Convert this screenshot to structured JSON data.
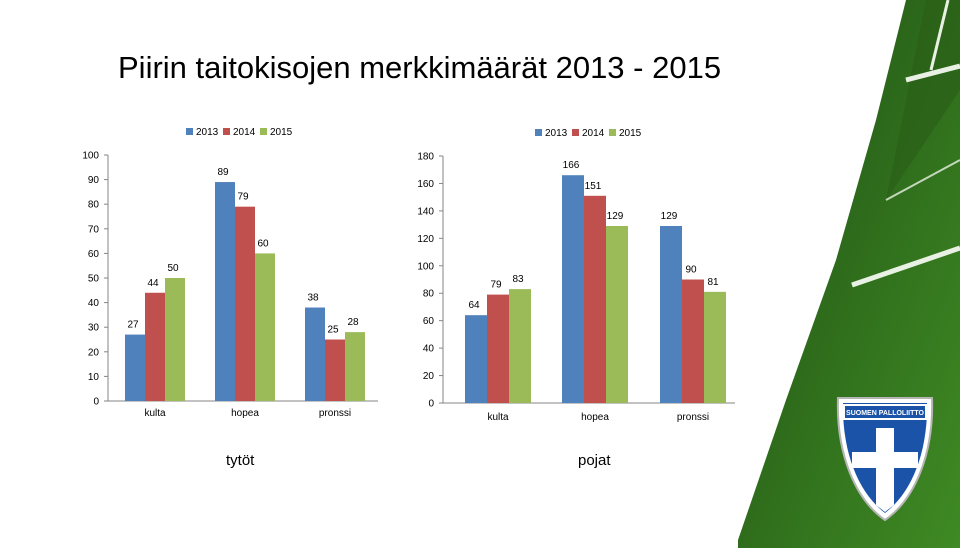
{
  "title": "Piirin taitokisojen merkkimäärät 2013 - 2015",
  "colors": {
    "2013": "#4f81bd",
    "2014": "#c0504d",
    "2015": "#9bbb59"
  },
  "chart_data": [
    {
      "type": "bar",
      "caption": "tytöt",
      "categories": [
        "kulta",
        "hopea",
        "pronssi"
      ],
      "series": [
        {
          "name": "2013",
          "values": [
            27,
            89,
            38
          ]
        },
        {
          "name": "2014",
          "values": [
            44,
            79,
            25
          ]
        },
        {
          "name": "2015",
          "values": [
            50,
            60,
            28
          ]
        }
      ],
      "ylim": [
        0,
        100
      ],
      "yticks": [
        "0",
        "10",
        "20",
        "30",
        "40",
        "50",
        "60",
        "70",
        "80",
        "90",
        "100"
      ],
      "legend": "top",
      "grid": false
    },
    {
      "type": "bar",
      "caption": "pojat",
      "categories": [
        "kulta",
        "hopea",
        "pronssi"
      ],
      "series": [
        {
          "name": "2013",
          "values": [
            64,
            166,
            129
          ]
        },
        {
          "name": "2014",
          "values": [
            79,
            151,
            90
          ]
        },
        {
          "name": "2015",
          "values": [
            83,
            129,
            81
          ]
        }
      ],
      "ylim": [
        0,
        180
      ],
      "yticks": [
        "0",
        "20",
        "40",
        "60",
        "80",
        "100",
        "120",
        "140",
        "160",
        "180"
      ],
      "legend": "top",
      "grid": false
    }
  ],
  "logo": {
    "text": "SUOMEN PALLOLIITTO"
  }
}
